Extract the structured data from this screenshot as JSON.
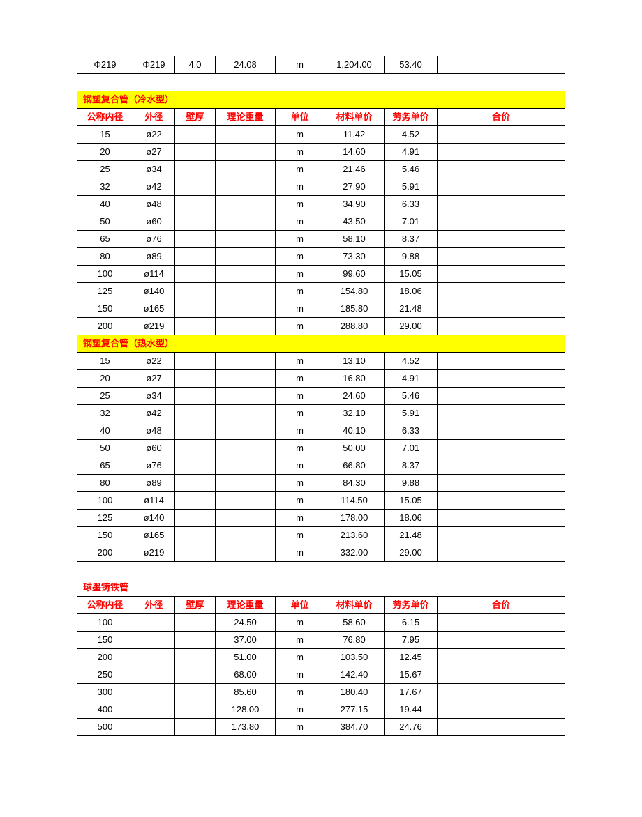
{
  "colors": {
    "highlight_bg": "#ffff00",
    "header_text": "#ff0000",
    "border": "#000000",
    "background": "#ffffff"
  },
  "headers": {
    "c1": "公称内径",
    "c2": "外径",
    "c3": "壁厚",
    "c4": "理论重量",
    "c5": "单位",
    "c6": "材料单价",
    "c7": "劳务单价",
    "c8": "合价"
  },
  "table1": {
    "rows": [
      {
        "c1": "Φ219",
        "c2": "Φ219",
        "c3": "4.0",
        "c4": "24.08",
        "c5": "m",
        "c6": "1,204.00",
        "c7": "53.40",
        "c8": ""
      }
    ]
  },
  "table2": {
    "title": "钢塑复合管（冷水型）",
    "rows": [
      {
        "c1": "15",
        "c2": "ø22",
        "c3": "",
        "c4": "",
        "c5": "m",
        "c6": "11.42",
        "c7": "4.52",
        "c8": ""
      },
      {
        "c1": "20",
        "c2": "ø27",
        "c3": "",
        "c4": "",
        "c5": "m",
        "c6": "14.60",
        "c7": "4.91",
        "c8": ""
      },
      {
        "c1": "25",
        "c2": "ø34",
        "c3": "",
        "c4": "",
        "c5": "m",
        "c6": "21.46",
        "c7": "5.46",
        "c8": ""
      },
      {
        "c1": "32",
        "c2": "ø42",
        "c3": "",
        "c4": "",
        "c5": "m",
        "c6": "27.90",
        "c7": "5.91",
        "c8": ""
      },
      {
        "c1": "40",
        "c2": "ø48",
        "c3": "",
        "c4": "",
        "c5": "m",
        "c6": "34.90",
        "c7": "6.33",
        "c8": ""
      },
      {
        "c1": "50",
        "c2": "ø60",
        "c3": "",
        "c4": "",
        "c5": "m",
        "c6": "43.50",
        "c7": "7.01",
        "c8": ""
      },
      {
        "c1": "65",
        "c2": "ø76",
        "c3": "",
        "c4": "",
        "c5": "m",
        "c6": "58.10",
        "c7": "8.37",
        "c8": ""
      },
      {
        "c1": "80",
        "c2": "ø89",
        "c3": "",
        "c4": "",
        "c5": "m",
        "c6": "73.30",
        "c7": "9.88",
        "c8": ""
      },
      {
        "c1": "100",
        "c2": "ø114",
        "c3": "",
        "c4": "",
        "c5": "m",
        "c6": "99.60",
        "c7": "15.05",
        "c8": ""
      },
      {
        "c1": "125",
        "c2": "ø140",
        "c3": "",
        "c4": "",
        "c5": "m",
        "c6": "154.80",
        "c7": "18.06",
        "c8": ""
      },
      {
        "c1": "150",
        "c2": "ø165",
        "c3": "",
        "c4": "",
        "c5": "m",
        "c6": "185.80",
        "c7": "21.48",
        "c8": ""
      },
      {
        "c1": "200",
        "c2": "ø219",
        "c3": "",
        "c4": "",
        "c5": "m",
        "c6": "288.80",
        "c7": "29.00",
        "c8": ""
      }
    ]
  },
  "table3": {
    "title": "钢塑复合管（热水型）",
    "rows": [
      {
        "c1": "15",
        "c2": "ø22",
        "c3": "",
        "c4": "",
        "c5": "m",
        "c6": "13.10",
        "c7": "4.52",
        "c8": ""
      },
      {
        "c1": "20",
        "c2": "ø27",
        "c3": "",
        "c4": "",
        "c5": "m",
        "c6": "16.80",
        "c7": "4.91",
        "c8": ""
      },
      {
        "c1": "25",
        "c2": "ø34",
        "c3": "",
        "c4": "",
        "c5": "m",
        "c6": "24.60",
        "c7": "5.46",
        "c8": ""
      },
      {
        "c1": "32",
        "c2": "ø42",
        "c3": "",
        "c4": "",
        "c5": "m",
        "c6": "32.10",
        "c7": "5.91",
        "c8": ""
      },
      {
        "c1": "40",
        "c2": "ø48",
        "c3": "",
        "c4": "",
        "c5": "m",
        "c6": "40.10",
        "c7": "6.33",
        "c8": ""
      },
      {
        "c1": "50",
        "c2": "ø60",
        "c3": "",
        "c4": "",
        "c5": "m",
        "c6": "50.00",
        "c7": "7.01",
        "c8": ""
      },
      {
        "c1": "65",
        "c2": "ø76",
        "c3": "",
        "c4": "",
        "c5": "m",
        "c6": "66.80",
        "c7": "8.37",
        "c8": ""
      },
      {
        "c1": "80",
        "c2": "ø89",
        "c3": "",
        "c4": "",
        "c5": "m",
        "c6": "84.30",
        "c7": "9.88",
        "c8": ""
      },
      {
        "c1": "100",
        "c2": "ø114",
        "c3": "",
        "c4": "",
        "c5": "m",
        "c6": "114.50",
        "c7": "15.05",
        "c8": ""
      },
      {
        "c1": "125",
        "c2": "ø140",
        "c3": "",
        "c4": "",
        "c5": "m",
        "c6": "178.00",
        "c7": "18.06",
        "c8": ""
      },
      {
        "c1": "150",
        "c2": "ø165",
        "c3": "",
        "c4": "",
        "c5": "m",
        "c6": "213.60",
        "c7": "21.48",
        "c8": ""
      },
      {
        "c1": "200",
        "c2": "ø219",
        "c3": "",
        "c4": "",
        "c5": "m",
        "c6": "332.00",
        "c7": "29.00",
        "c8": ""
      }
    ]
  },
  "table4": {
    "title": "球墨铸铁管",
    "rows": [
      {
        "c1": "100",
        "c2": "",
        "c3": "",
        "c4": "24.50",
        "c5": "m",
        "c6": "58.60",
        "c7": "6.15",
        "c8": ""
      },
      {
        "c1": "150",
        "c2": "",
        "c3": "",
        "c4": "37.00",
        "c5": "m",
        "c6": "76.80",
        "c7": "7.95",
        "c8": ""
      },
      {
        "c1": "200",
        "c2": "",
        "c3": "",
        "c4": "51.00",
        "c5": "m",
        "c6": "103.50",
        "c7": "12.45",
        "c8": ""
      },
      {
        "c1": "250",
        "c2": "",
        "c3": "",
        "c4": "68.00",
        "c5": "m",
        "c6": "142.40",
        "c7": "15.67",
        "c8": ""
      },
      {
        "c1": "300",
        "c2": "",
        "c3": "",
        "c4": "85.60",
        "c5": "m",
        "c6": "180.40",
        "c7": "17.67",
        "c8": ""
      },
      {
        "c1": "400",
        "c2": "",
        "c3": "",
        "c4": "128.00",
        "c5": "m",
        "c6": "277.15",
        "c7": "19.44",
        "c8": ""
      },
      {
        "c1": "500",
        "c2": "",
        "c3": "",
        "c4": "173.80",
        "c5": "m",
        "c6": "384.70",
        "c7": "24.76",
        "c8": ""
      }
    ]
  }
}
